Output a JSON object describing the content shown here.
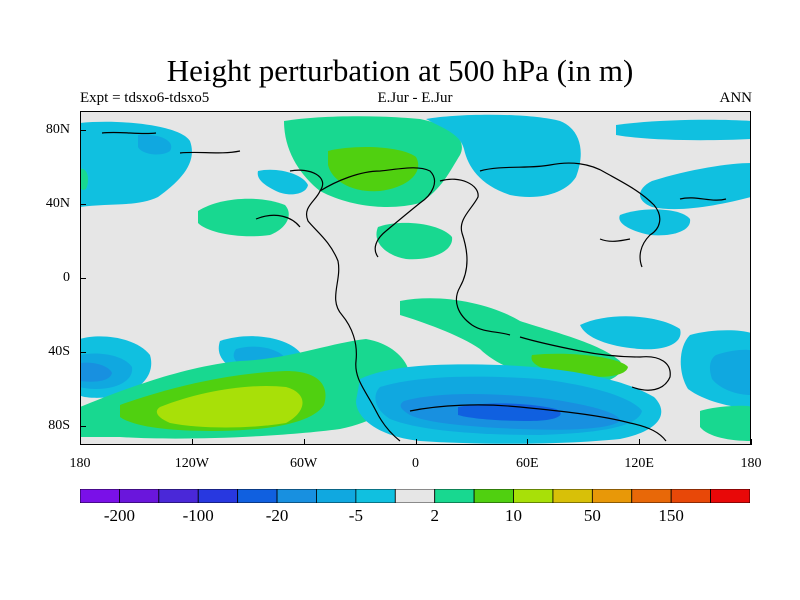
{
  "title": "Height perturbation at 500 hPa (in m)",
  "subtitle_left": "Expt = tdsxo6-tdsxo5",
  "subtitle_center": "E.Jur - E.Jur",
  "subtitle_right": "ANN",
  "y_ticks": [
    {
      "label": "80N",
      "value": 80
    },
    {
      "label": "40N",
      "value": 40
    },
    {
      "label": "0",
      "value": 0
    },
    {
      "label": "40S",
      "value": -40
    },
    {
      "label": "80S",
      "value": -80
    }
  ],
  "x_ticks": [
    {
      "label": "180",
      "value": -180
    },
    {
      "label": "120W",
      "value": -120
    },
    {
      "label": "60W",
      "value": -60
    },
    {
      "label": "0",
      "value": 0
    },
    {
      "label": "60E",
      "value": 60
    },
    {
      "label": "120E",
      "value": 120
    },
    {
      "label": "180",
      "value": 180
    }
  ],
  "colorbar": {
    "colors": [
      "#7a10e8",
      "#6a16dc",
      "#4a28d8",
      "#2838e0",
      "#1060e0",
      "#1890e0",
      "#10a8e0",
      "#10c0e0",
      "#e6e6e6",
      "#18d890",
      "#50d010",
      "#a8e008",
      "#d8c008",
      "#e89808",
      "#e86808",
      "#e84808",
      "#e80808"
    ],
    "labels": [
      {
        "text": "-200",
        "boundary": 1
      },
      {
        "text": "-100",
        "boundary": 3
      },
      {
        "text": "-20",
        "boundary": 5
      },
      {
        "text": "-5",
        "boundary": 7
      },
      {
        "text": "2",
        "boundary": 9
      },
      {
        "text": "10",
        "boundary": 11
      },
      {
        "text": "50",
        "boundary": 13
      },
      {
        "text": "150",
        "boundary": 15
      }
    ]
  },
  "map": {
    "background_color": "#e6e6e6",
    "contour_colors": {
      "pos_weak": "#18d890",
      "pos_mid": "#50d010",
      "pos_strong": "#a8e008",
      "neg_weak": "#10c0e0",
      "neg_mid": "#10a8e0",
      "neg_strong": "#1890e0",
      "neg_stronger": "#1060e0"
    }
  }
}
